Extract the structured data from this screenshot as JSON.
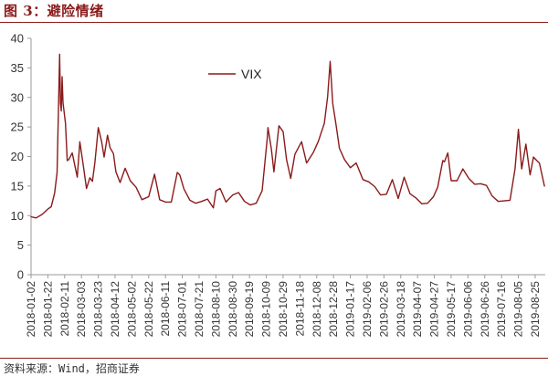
{
  "figure": {
    "title": "图 3：避险情绪",
    "source": "资料来源：Wind，招商证券"
  },
  "colors": {
    "title": "#8b1a1a",
    "series": "#8b1a1a",
    "axis": "#9a9a9a"
  },
  "chart_data": {
    "type": "line",
    "title": "",
    "xlabel": "",
    "ylabel": "",
    "ylim": [
      0,
      40
    ],
    "yticks": [
      0,
      5,
      10,
      15,
      20,
      25,
      30,
      35,
      40
    ],
    "grid": false,
    "legend_position": "top-center",
    "x_tick_labels": [
      "2018-01-02",
      "2018-01-22",
      "2018-02-11",
      "2018-03-03",
      "2018-03-23",
      "2018-04-12",
      "2018-05-02",
      "2018-05-22",
      "2018-06-11",
      "2018-07-01",
      "2018-07-21",
      "2018-08-10",
      "2018-08-30",
      "2018-09-19",
      "2018-10-09",
      "2018-10-29",
      "2018-11-18",
      "2018-12-08",
      "2018-12-28",
      "2019-01-17",
      "2019-02-06",
      "2019-02-26",
      "2019-03-18",
      "2019-04-07",
      "2019-04-27",
      "2019-05-17",
      "2019-06-06",
      "2019-06-26",
      "2019-07-16",
      "2019-08-05",
      "2019-08-25"
    ],
    "series": [
      {
        "name": "VIX",
        "x": [
          "2018-01-02",
          "2018-01-08",
          "2018-01-15",
          "2018-01-22",
          "2018-01-26",
          "2018-01-30",
          "2018-02-02",
          "2018-02-05",
          "2018-02-06",
          "2018-02-07",
          "2018-02-08",
          "2018-02-09",
          "2018-02-12",
          "2018-02-14",
          "2018-02-16",
          "2018-02-20",
          "2018-02-26",
          "2018-03-01",
          "2018-03-05",
          "2018-03-09",
          "2018-03-13",
          "2018-03-16",
          "2018-03-19",
          "2018-03-23",
          "2018-03-27",
          "2018-03-30",
          "2018-04-03",
          "2018-04-06",
          "2018-04-10",
          "2018-04-13",
          "2018-04-18",
          "2018-04-24",
          "2018-04-30",
          "2018-05-07",
          "2018-05-14",
          "2018-05-22",
          "2018-05-29",
          "2018-06-04",
          "2018-06-11",
          "2018-06-18",
          "2018-06-25",
          "2018-06-28",
          "2018-07-03",
          "2018-07-10",
          "2018-07-17",
          "2018-07-24",
          "2018-07-31",
          "2018-08-07",
          "2018-08-10",
          "2018-08-15",
          "2018-08-22",
          "2018-08-30",
          "2018-09-06",
          "2018-09-13",
          "2018-09-20",
          "2018-09-27",
          "2018-10-04",
          "2018-10-10",
          "2018-10-11",
          "2018-10-15",
          "2018-10-18",
          "2018-10-24",
          "2018-10-29",
          "2018-11-02",
          "2018-11-07",
          "2018-11-12",
          "2018-11-20",
          "2018-11-26",
          "2018-12-04",
          "2018-12-10",
          "2018-12-17",
          "2018-12-21",
          "2018-12-24",
          "2018-12-27",
          "2018-12-31",
          "2019-01-04",
          "2019-01-10",
          "2019-01-17",
          "2019-01-24",
          "2019-02-01",
          "2019-02-08",
          "2019-02-15",
          "2019-02-22",
          "2019-03-01",
          "2019-03-08",
          "2019-03-15",
          "2019-03-22",
          "2019-03-29",
          "2019-04-05",
          "2019-04-12",
          "2019-04-19",
          "2019-04-26",
          "2019-05-01",
          "2019-05-07",
          "2019-05-09",
          "2019-05-13",
          "2019-05-17",
          "2019-05-24",
          "2019-05-31",
          "2019-06-07",
          "2019-06-14",
          "2019-06-21",
          "2019-06-28",
          "2019-07-05",
          "2019-07-12",
          "2019-07-19",
          "2019-07-26",
          "2019-08-01",
          "2019-08-05",
          "2019-08-09",
          "2019-08-14",
          "2019-08-19",
          "2019-08-23",
          "2019-08-27",
          "2019-08-30",
          "2019-09-05"
        ],
        "values": [
          9.8,
          9.6,
          10.2,
          11.1,
          11.5,
          13.8,
          17.3,
          37.3,
          29.0,
          27.7,
          33.5,
          29.1,
          25.6,
          19.3,
          19.5,
          20.6,
          16.5,
          22.5,
          18.7,
          14.6,
          16.4,
          15.8,
          19.0,
          24.9,
          22.5,
          19.9,
          23.6,
          21.5,
          20.5,
          17.4,
          15.6,
          18.0,
          15.9,
          14.8,
          12.7,
          13.2,
          17.0,
          12.7,
          12.3,
          12.3,
          17.3,
          16.9,
          14.5,
          12.6,
          12.1,
          12.4,
          12.8,
          11.3,
          14.2,
          14.6,
          12.3,
          13.5,
          13.9,
          12.4,
          11.8,
          12.1,
          14.2,
          22.9,
          24.9,
          21.3,
          17.4,
          25.2,
          24.2,
          19.5,
          16.3,
          20.4,
          22.5,
          18.9,
          20.7,
          22.6,
          25.6,
          30.1,
          36.1,
          29.0,
          25.4,
          21.4,
          19.5,
          18.1,
          18.9,
          16.1,
          15.7,
          14.9,
          13.5,
          13.6,
          16.1,
          12.9,
          16.5,
          13.7,
          13.0,
          12.0,
          12.1,
          13.2,
          14.8,
          19.3,
          19.1,
          20.6,
          15.9,
          15.9,
          17.9,
          16.3,
          15.3,
          15.4,
          15.1,
          13.3,
          12.4,
          12.5,
          12.6,
          17.9,
          24.6,
          17.9,
          22.1,
          16.9,
          19.9,
          19.3,
          18.9,
          15.0
        ]
      }
    ]
  }
}
